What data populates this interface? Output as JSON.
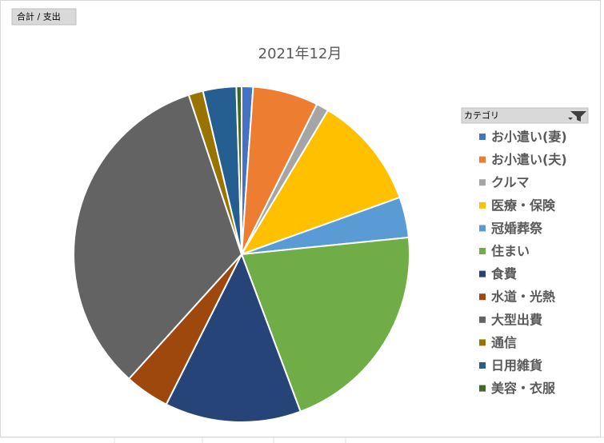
{
  "value_field_button": "合計 / 支出",
  "legend_field_button": "カテゴリ",
  "chart_data": {
    "type": "pie",
    "title": "2021年12月",
    "categories": [
      "お小遣い(妻)",
      "お小遣い(夫)",
      "クルマ",
      "医療・保険",
      "冠婚葬祭",
      "住まい",
      "食費",
      "水道・光熱",
      "大型出費",
      "通信",
      "日用雑貨",
      "美容・衣服"
    ],
    "values": [
      1.1,
      6.3,
      1.2,
      10.9,
      3.9,
      20.9,
      13.1,
      4.3,
      33.2,
      1.4,
      3.2,
      0.5
    ],
    "colors": [
      "#4472c4",
      "#ed7d31",
      "#a5a5a5",
      "#ffc000",
      "#5b9bd5",
      "#70ad47",
      "#264478",
      "#9e480e",
      "#636363",
      "#997300",
      "#255e91",
      "#43682b"
    ],
    "legend": "right"
  }
}
